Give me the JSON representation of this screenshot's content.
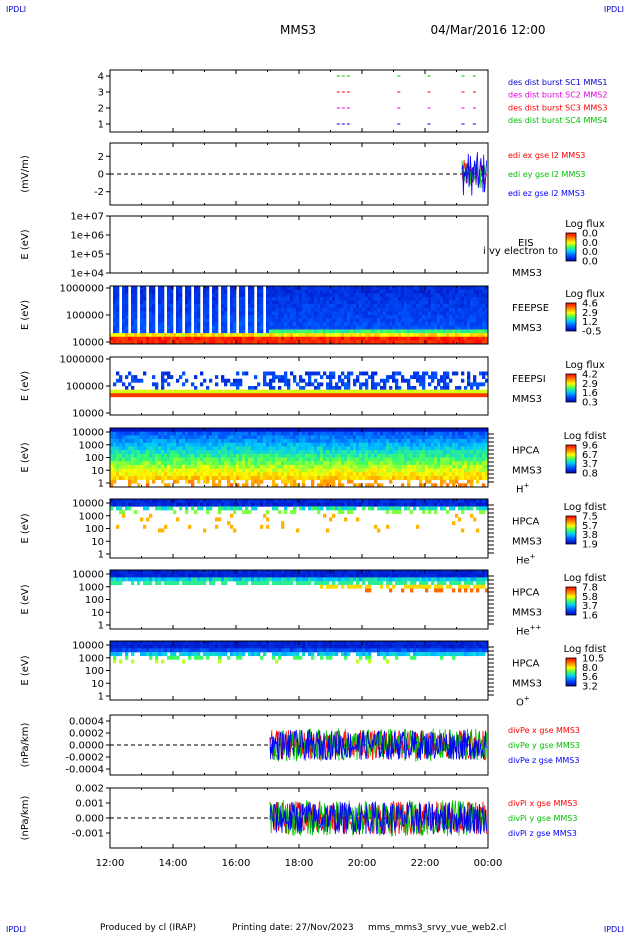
{
  "corners": {
    "tl": "IPDLI",
    "tr": "IPDLI",
    "bl": "IPDLI",
    "br": "IPDLI"
  },
  "header": {
    "spacecraft": "MMS3",
    "datetime": "04/Mar/2016 12:00"
  },
  "footer": {
    "produced_by": "Produced by cl (IRAP)",
    "printing_date": "Printing date: 27/Nov/2023",
    "script": "mms_mms3_srvy_vue_web2.cl"
  },
  "colors": {
    "green": "#00c000",
    "red": "#ff0000",
    "magenta": "#e000e0",
    "blue": "#0000ff",
    "navy": "#00008b",
    "orange": "#ff6a00"
  },
  "chart_data": [
    {
      "id": "burst",
      "type": "scatter",
      "yticks": [
        "4",
        "3",
        "2",
        "1"
      ],
      "legend": [
        {
          "label": "des dist burst SC1 MMS1",
          "color": "#0000cc"
        },
        {
          "label": "des dist burst SC2 MMS2",
          "color": "#e000e0"
        },
        {
          "label": "des dist burst SC3 MMS3",
          "color": "#ff0000"
        },
        {
          "label": "des dist burst SC4 MMS4",
          "color": "#00c000"
        }
      ]
    },
    {
      "id": "efield",
      "type": "line",
      "ylabel": "(mV/m)",
      "yticks": [
        "2",
        "0",
        "-2"
      ],
      "ylim": [
        -3.5,
        3.5
      ],
      "legend": [
        {
          "label": "edi ex gse l2 MMS3",
          "color": "#ff0000"
        },
        {
          "label": "edi ey gse l2 MMS3",
          "color": "#00c000"
        },
        {
          "label": "edi ez gse l2 MMS3",
          "color": "#0000ff"
        }
      ]
    },
    {
      "id": "eis",
      "type": "heatmap",
      "ylabel": "E (eV)",
      "yticks": [
        "1e+07",
        "1e+06",
        "1e+05",
        "1e+04"
      ],
      "instrument": "EIS",
      "instrument_sub": "MMS3",
      "overlay_text": "i vy electron to",
      "cbar_title": "Log flux",
      "cbar_ticks": [
        "0.0",
        "0.0",
        "0.0",
        "0.0"
      ]
    },
    {
      "id": "feepse",
      "type": "heatmap",
      "ylabel": "E (eV)",
      "yticks": [
        "1000000",
        "100000",
        "10000"
      ],
      "instrument": "FEEPSE",
      "instrument_sub": "MMS3",
      "cbar_title": "Log flux",
      "cbar_ticks": [
        "4.6",
        "2.9",
        "1.2",
        "-0.5"
      ]
    },
    {
      "id": "feepsi",
      "type": "heatmap",
      "ylabel": "E (eV)",
      "yticks": [
        "1000000",
        "100000",
        "10000"
      ],
      "instrument": "FEEPSI",
      "instrument_sub": "MMS3",
      "cbar_title": "Log flux",
      "cbar_ticks": [
        "4.2",
        "2.9",
        "1.6",
        "0.3"
      ]
    },
    {
      "id": "hpca_h",
      "type": "heatmap",
      "ylabel": "E (eV)",
      "yticks": [
        "10000",
        "1000",
        "100",
        "10",
        "1"
      ],
      "instrument": "HPCA",
      "instrument_sub": "MMS3",
      "species": "H",
      "charge": "+",
      "cbar_title": "Log fdist",
      "cbar_ticks": [
        "9.6",
        "6.7",
        "3.7",
        "0.8"
      ]
    },
    {
      "id": "hpca_he",
      "type": "heatmap",
      "ylabel": "E (eV)",
      "yticks": [
        "10000",
        "1000",
        "100",
        "10",
        "1"
      ],
      "instrument": "HPCA",
      "instrument_sub": "MMS3",
      "species": "He",
      "charge": "+",
      "cbar_title": "Log fdist",
      "cbar_ticks": [
        "7.5",
        "5.7",
        "3.8",
        "1.9"
      ]
    },
    {
      "id": "hpca_hepp",
      "type": "heatmap",
      "ylabel": "E (eV)",
      "yticks": [
        "10000",
        "1000",
        "100",
        "10",
        "1"
      ],
      "instrument": "HPCA",
      "instrument_sub": "MMS3",
      "species": "He",
      "charge": "++",
      "cbar_title": "Log fdist",
      "cbar_ticks": [
        "7.8",
        "5.8",
        "3.7",
        "1.6"
      ]
    },
    {
      "id": "hpca_o",
      "type": "heatmap",
      "ylabel": "E (eV)",
      "yticks": [
        "10000",
        "1000",
        "100",
        "10",
        "1"
      ],
      "instrument": "HPCA",
      "instrument_sub": "MMS3",
      "species": "O",
      "charge": "+",
      "cbar_title": "Log fdist",
      "cbar_ticks": [
        "10.5",
        "8.0",
        "5.6",
        "3.2"
      ]
    },
    {
      "id": "divpe",
      "type": "line",
      "ylabel": "(nPa/km)",
      "yticks": [
        "0.0004",
        "0.0002",
        "0.0000",
        "-0.0002",
        "-0.0004"
      ],
      "ylim": [
        -0.0005,
        0.0005
      ],
      "legend": [
        {
          "label": "divPe x gse MMS3",
          "color": "#ff0000"
        },
        {
          "label": "divPe y gse MMS3",
          "color": "#00c000"
        },
        {
          "label": "divPe z gse MMS3",
          "color": "#0000ff"
        }
      ]
    },
    {
      "id": "divpi",
      "type": "line",
      "ylabel": "(nPa/km)",
      "yticks": [
        "0.002",
        "0.001",
        "0.000",
        "-0.001"
      ],
      "ylim": [
        -0.002,
        0.002
      ],
      "legend": [
        {
          "label": "divPi x gse MMS3",
          "color": "#ff0000"
        },
        {
          "label": "divPi y gse MMS3",
          "color": "#00c000"
        },
        {
          "label": "divPi z gse MMS3",
          "color": "#0000ff"
        }
      ]
    }
  ],
  "time_axis": {
    "ticks": [
      "12:00",
      "14:00",
      "16:00",
      "18:00",
      "20:00",
      "22:00",
      "00:00"
    ]
  }
}
